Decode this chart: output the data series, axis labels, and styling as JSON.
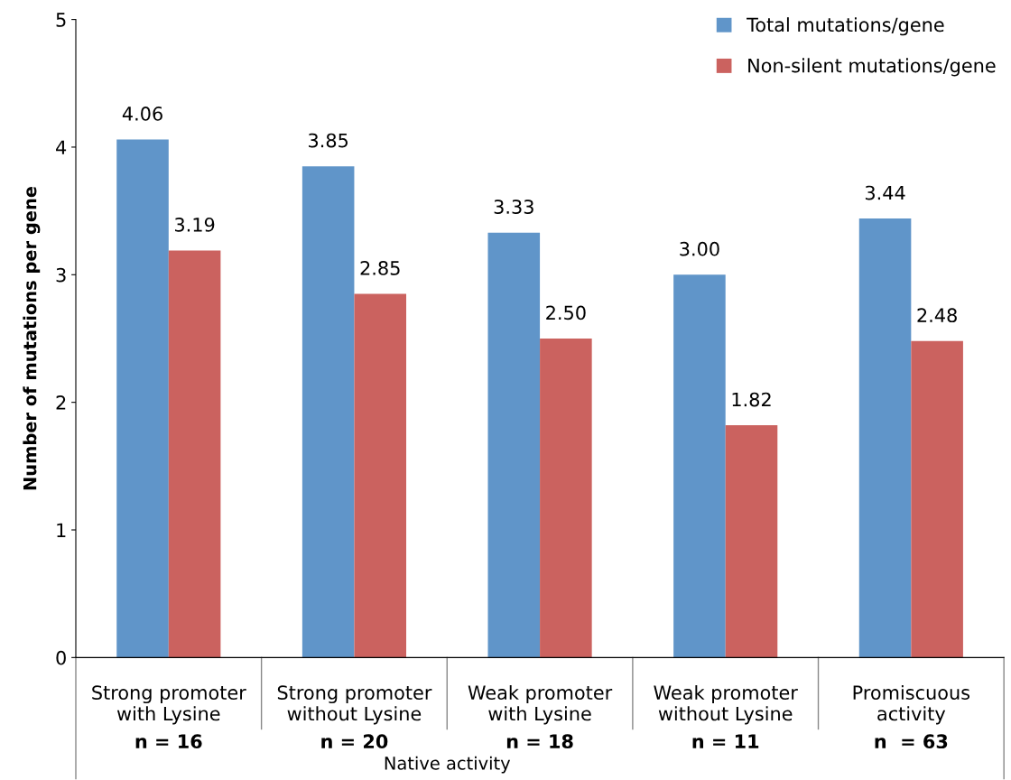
{
  "chart_data": {
    "type": "bar",
    "ylabel": "Number of mutations per gene",
    "categories": [
      "Strong promoter\nwith Lysine",
      "Strong promoter\nwithout Lysine",
      "Weak promoter\nwith Lysine",
      "Weak promoter\nwithout Lysine",
      "Promiscuous\nactivity"
    ],
    "series": [
      {
        "name": "Total mutations/gene",
        "color": "#6095c9",
        "values": [
          4.06,
          3.85,
          3.33,
          3.0,
          3.44
        ],
        "value_labels": [
          "4.06",
          "3.85",
          "3.33",
          "3.00",
          "3.44"
        ]
      },
      {
        "name": "Non-silent mutations/gene",
        "color": "#cb625f",
        "values": [
          3.19,
          2.85,
          2.5,
          1.82,
          2.48
        ],
        "value_labels": [
          "3.19",
          "2.85",
          "2.50",
          "1.82",
          "2.48"
        ]
      }
    ],
    "annotations": [
      "n = 16",
      "n = 20",
      "n = 18",
      "n = 11",
      "n  = 63",
      "Native activity"
    ],
    "ylim": [
      0,
      5
    ],
    "yticks": [
      0,
      1,
      2,
      3,
      4,
      5
    ],
    "grid": false,
    "legend": "top right"
  }
}
